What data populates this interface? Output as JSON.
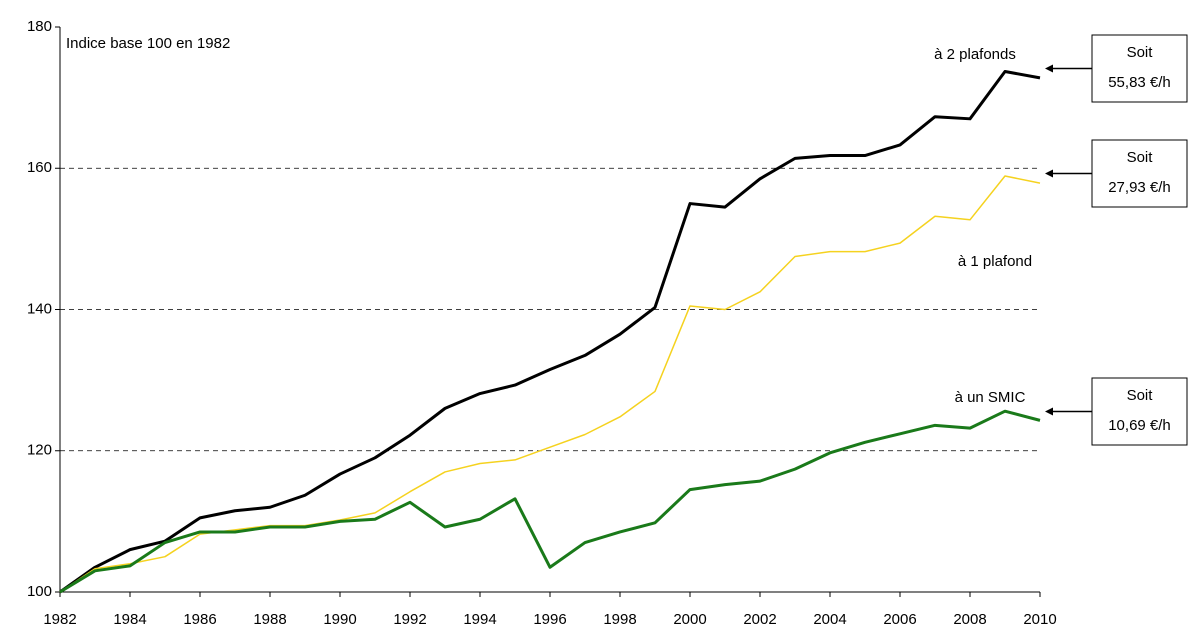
{
  "chart_data": {
    "type": "line",
    "subtitle": "Indice base 100 en 1982",
    "x": [
      1982,
      1983,
      1984,
      1985,
      1986,
      1987,
      1988,
      1989,
      1990,
      1991,
      1992,
      1993,
      1994,
      1995,
      1996,
      1997,
      1998,
      1999,
      2000,
      2001,
      2002,
      2003,
      2004,
      2005,
      2006,
      2007,
      2008,
      2009,
      2010
    ],
    "series": [
      {
        "name": "à 2 plafonds",
        "color": "#000000",
        "callout": [
          "Soit",
          "55,83 €/h"
        ],
        "values": [
          100,
          103.5,
          106,
          107.2,
          110.5,
          111.5,
          112,
          113.7,
          116.7,
          119,
          122.2,
          126,
          128.1,
          129.3,
          131.5,
          133.5,
          136.5,
          140.3,
          155,
          154.5,
          158.5,
          161.4,
          161.8,
          161.8,
          163.3,
          167.3,
          167,
          173.7,
          172.8
        ]
      },
      {
        "name": "à 1 plafond",
        "color": "#f5d21f",
        "callout": [
          "Soit",
          "27,93 €/h"
        ],
        "values": [
          100,
          103.3,
          104,
          105,
          108.2,
          108.8,
          109.4,
          109.4,
          110.2,
          111.2,
          114.2,
          117,
          118.2,
          118.7,
          120.5,
          122.3,
          124.8,
          128.4,
          140.5,
          140,
          142.5,
          147.5,
          148.2,
          148.2,
          149.4,
          153.2,
          152.7,
          158.9,
          157.9
        ]
      },
      {
        "name": "à un SMIC",
        "color": "#1a7a1a",
        "callout": [
          "Soit",
          "10,69 €/h"
        ],
        "values": [
          100,
          103,
          103.7,
          107,
          108.5,
          108.5,
          109.2,
          109.2,
          110,
          110.3,
          112.7,
          109.2,
          110.3,
          113.2,
          103.5,
          107,
          108.5,
          109.8,
          114.5,
          115.2,
          115.7,
          117.4,
          119.7,
          121.2,
          122.4,
          123.6,
          123.2,
          125.6,
          124.3
        ]
      }
    ],
    "xlim": [
      1982,
      2010
    ],
    "xticks": [
      1982,
      1984,
      1986,
      1988,
      1990,
      1992,
      1994,
      1996,
      1998,
      2000,
      2002,
      2004,
      2006,
      2008,
      2010
    ],
    "ylim": [
      100,
      180
    ],
    "yticks": [
      100,
      120,
      140,
      160,
      180
    ],
    "grid": true
  }
}
